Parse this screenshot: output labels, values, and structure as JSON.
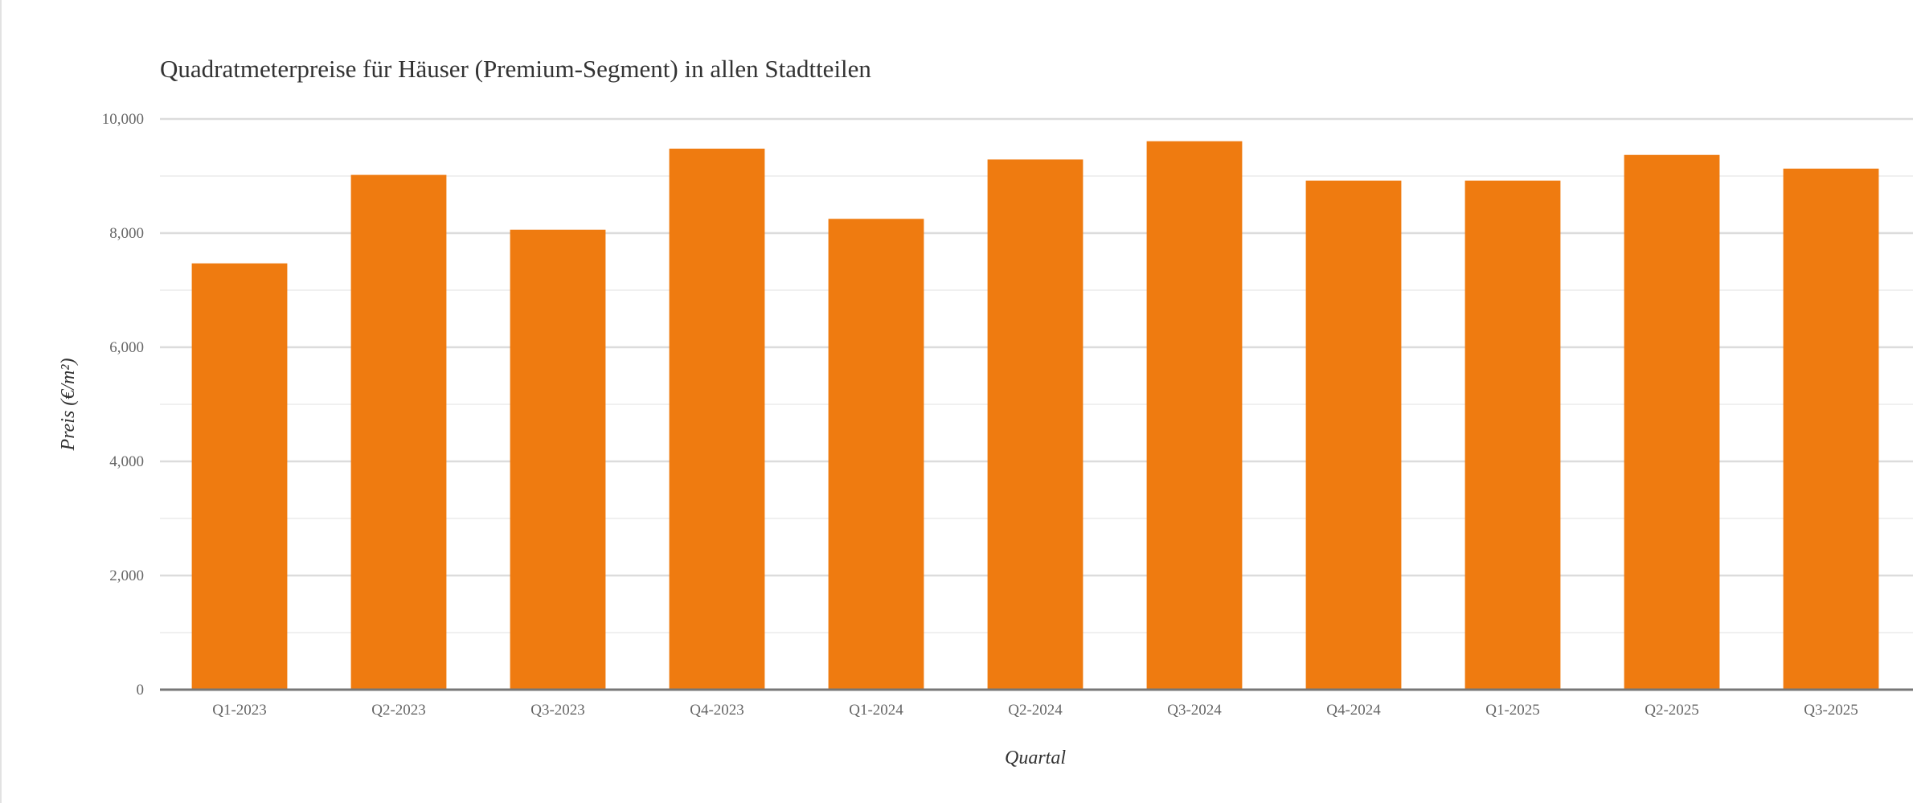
{
  "chart_data": {
    "type": "bar",
    "title": "Quadratmeterpreise für Häuser (Premium-Segment) in allen Stadtteilen",
    "xlabel": "Quartal",
    "ylabel": "Preis (€/m²)",
    "categories": [
      "Q1-2023",
      "Q2-2023",
      "Q3-2023",
      "Q4-2023",
      "Q1-2024",
      "Q2-2024",
      "Q3-2024",
      "Q4-2024",
      "Q1-2025",
      "Q2-2025",
      "Q3-2025"
    ],
    "values": [
      7470,
      9020,
      8060,
      9480,
      8250,
      9290,
      9610,
      8920,
      8920,
      9370,
      9130
    ],
    "ylim": [
      0,
      10000
    ],
    "yticks": [
      0,
      2000,
      4000,
      6000,
      8000,
      10000
    ],
    "ytick_labels": [
      "0",
      "2,000",
      "4,000",
      "6,000",
      "8,000",
      "10,000"
    ],
    "grid": true,
    "legend": "none",
    "bar_color": "#ef7b10"
  }
}
